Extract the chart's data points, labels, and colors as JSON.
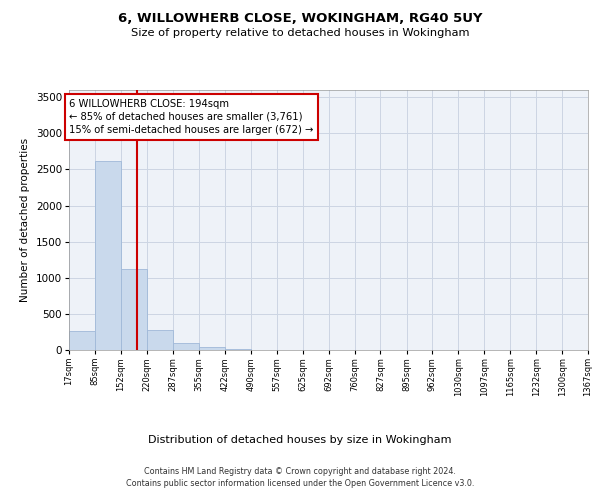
{
  "title": "6, WILLOWHERB CLOSE, WOKINGHAM, RG40 5UY",
  "subtitle": "Size of property relative to detached houses in Wokingham",
  "xlabel": "Distribution of detached houses by size in Wokingham",
  "ylabel": "Number of detached properties",
  "footnote1": "Contains HM Land Registry data © Crown copyright and database right 2024.",
  "footnote2": "Contains public sector information licensed under the Open Government Licence v3.0.",
  "bar_color": "#c9d9ec",
  "bar_edge_color": "#a0b8d8",
  "grid_color": "#ccd5e3",
  "vline_color": "#cc0000",
  "annotation_text": "6 WILLOWHERB CLOSE: 194sqm\n← 85% of detached houses are smaller (3,761)\n15% of semi-detached houses are larger (672) →",
  "bins": [
    17,
    85,
    152,
    220,
    287,
    355,
    422,
    490,
    557,
    625,
    692,
    760,
    827,
    895,
    962,
    1030,
    1097,
    1165,
    1232,
    1300,
    1367
  ],
  "bin_labels": [
    "17sqm",
    "85sqm",
    "152sqm",
    "220sqm",
    "287sqm",
    "355sqm",
    "422sqm",
    "490sqm",
    "557sqm",
    "625sqm",
    "692sqm",
    "760sqm",
    "827sqm",
    "895sqm",
    "962sqm",
    "1030sqm",
    "1097sqm",
    "1165sqm",
    "1232sqm",
    "1300sqm",
    "1367sqm"
  ],
  "bar_heights": [
    270,
    2620,
    1120,
    280,
    100,
    40,
    10,
    0,
    0,
    0,
    0,
    0,
    0,
    0,
    0,
    0,
    0,
    0,
    0,
    0
  ],
  "ylim": [
    0,
    3600
  ],
  "yticks": [
    0,
    500,
    1000,
    1500,
    2000,
    2500,
    3000,
    3500
  ],
  "bg_color": "#eef2f8",
  "property_size_sqm": 194
}
